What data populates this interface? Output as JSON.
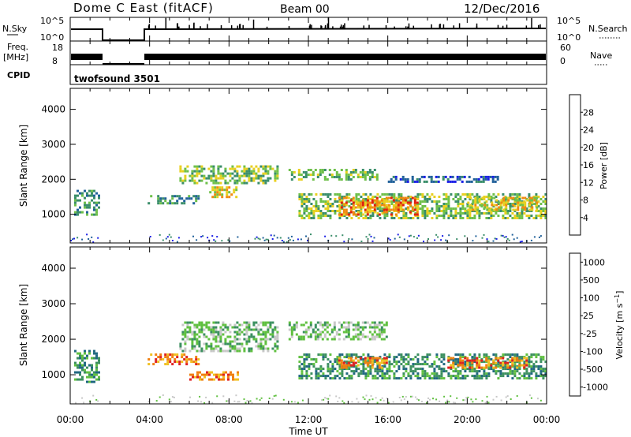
{
  "header": {
    "title": "Dome C East (fitACF)",
    "beam": "Beam 00",
    "date": "12/Dec/2016"
  },
  "panels": {
    "nsky": {
      "label": "N.Sky",
      "ticks": [
        "10^5",
        "10^0"
      ],
      "right_ticks": [
        "10^5",
        "10^0"
      ],
      "right_label": "N.Search"
    },
    "freq": {
      "label_line1": "Freq.",
      "label_line2": "[MHz]",
      "ticks": [
        "18",
        "8"
      ],
      "right_ticks": [
        "60",
        "0"
      ],
      "right_label": "Nave"
    },
    "cpid": {
      "label": "CPID",
      "value": "twofsound 3501"
    }
  },
  "time_axis": {
    "label": "Time UT",
    "ticks": [
      "00:00",
      "04:00",
      "08:00",
      "12:00",
      "16:00",
      "20:00",
      "00:00"
    ]
  },
  "chart_data": [
    {
      "type": "heatmap",
      "quantity": "Power",
      "ylabel": "Slant Range [km]",
      "xlabel": "Time UT",
      "x_range_hours": [
        0,
        24
      ],
      "y_ticks": [
        "1000",
        "2000",
        "3000",
        "4000"
      ],
      "ylim": [
        180,
        4600
      ],
      "colorbar": {
        "label": "Power [dB]",
        "ticks": [
          "4",
          "8",
          "12",
          "16",
          "20",
          "24",
          "28"
        ],
        "range": [
          0,
          32
        ],
        "colors": [
          "#1a1ee6",
          "#20609a",
          "#3a8e6a",
          "#6fc04a",
          "#e8d020",
          "#f08a10",
          "#e02010"
        ]
      },
      "echo_regions": [
        {
          "t": [
            0.2,
            1.5
          ],
          "r": [
            1000,
            1700
          ],
          "level": 12
        },
        {
          "t": [
            3.9,
            6.5
          ],
          "r": [
            1300,
            1550
          ],
          "level": 10
        },
        {
          "t": [
            5.5,
            10.5
          ],
          "r": [
            1900,
            2400
          ],
          "level": 14
        },
        {
          "t": [
            7.0,
            8.5
          ],
          "r": [
            1500,
            1800
          ],
          "level": 22
        },
        {
          "t": [
            11.0,
            15.5
          ],
          "r": [
            2000,
            2300
          ],
          "level": 14
        },
        {
          "t": [
            11.5,
            24.0
          ],
          "r": [
            900,
            1600
          ],
          "level": 18
        },
        {
          "t": [
            13.5,
            17.5
          ],
          "r": [
            1000,
            1500
          ],
          "level": 26
        },
        {
          "t": [
            20.0,
            23.5
          ],
          "r": [
            1100,
            1500
          ],
          "level": 22
        },
        {
          "t": [
            16.0,
            21.5
          ],
          "r": [
            1900,
            2100
          ],
          "level": 8
        }
      ]
    },
    {
      "type": "heatmap",
      "quantity": "Velocity",
      "ylabel": "Slant Range [km]",
      "xlabel": "Time UT",
      "x_range_hours": [
        0,
        24
      ],
      "y_ticks": [
        "1000",
        "2000",
        "3000",
        "4000"
      ],
      "ylim": [
        180,
        4600
      ],
      "colorbar": {
        "label": "Velocity [m s^-1]",
        "ticks": [
          "1000",
          "500",
          "100",
          "25",
          "-25",
          "-100",
          "-500",
          "-1000"
        ],
        "colors": [
          "#2040c0",
          "#206880",
          "#3c9060",
          "#60c040",
          "#c8c8c8",
          "#f0c020",
          "#f08010",
          "#e02020"
        ]
      },
      "echo_regions": [
        {
          "t": [
            0.2,
            1.5
          ],
          "r": [
            800,
            1700
          ],
          "level": "100"
        },
        {
          "t": [
            3.9,
            6.5
          ],
          "r": [
            1300,
            1600
          ],
          "level": "-500"
        },
        {
          "t": [
            5.5,
            10.5
          ],
          "r": [
            1700,
            2500
          ],
          "level": "25"
        },
        {
          "t": [
            6.0,
            8.5
          ],
          "r": [
            900,
            1100
          ],
          "level": "-500"
        },
        {
          "t": [
            11.0,
            16.0
          ],
          "r": [
            2000,
            2500
          ],
          "level": "25"
        },
        {
          "t": [
            11.5,
            24.0
          ],
          "r": [
            900,
            1600
          ],
          "level": "100"
        },
        {
          "t": [
            13.5,
            16.0
          ],
          "r": [
            1200,
            1500
          ],
          "level": "-500"
        },
        {
          "t": [
            19.0,
            23.0
          ],
          "r": [
            1200,
            1500
          ],
          "level": "-500"
        }
      ]
    }
  ]
}
